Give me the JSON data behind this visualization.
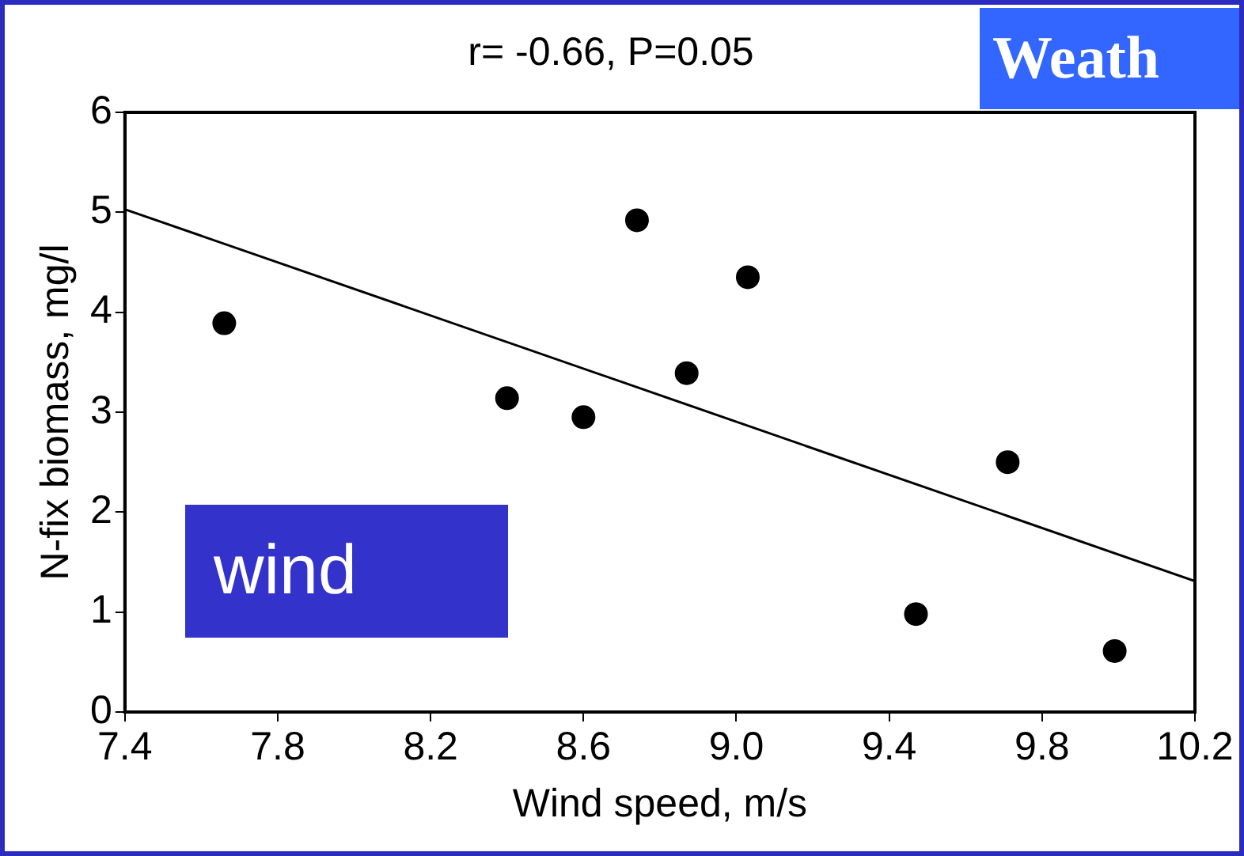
{
  "chart_data": {
    "type": "scatter",
    "title": "r= -0.66, P=0.05",
    "xlabel": "Wind speed, m/s",
    "ylabel": "N-fix biomass, mg/l",
    "annotations": [
      "wind",
      "Weath"
    ],
    "series": [
      {
        "color": "#000000",
        "marker": "circle",
        "x": [
          7.66,
          8.4,
          8.6,
          8.74,
          8.87,
          9.03,
          9.47,
          9.71,
          9.99
        ],
        "values": [
          3.89,
          3.14,
          2.95,
          4.92,
          3.39,
          4.35,
          0.98,
          2.5,
          0.61
        ]
      },
      {
        "type": "line",
        "color": "#000000",
        "marker": "none",
        "line_style": "solid",
        "x": [
          7.4,
          10.2
        ],
        "values": [
          5.03,
          1.31
        ]
      }
    ],
    "xlim": [
      7.4,
      10.2
    ],
    "xticks": [
      7.4,
      7.8,
      8.2,
      8.6,
      {
        "value": 9,
        "label": "9.0"
      },
      9.4,
      9.8,
      10.2
    ],
    "ylim": [
      0,
      6
    ],
    "yticks": [
      0,
      1,
      2,
      3,
      4,
      5,
      6
    ],
    "grid": false,
    "legend": false
  }
}
